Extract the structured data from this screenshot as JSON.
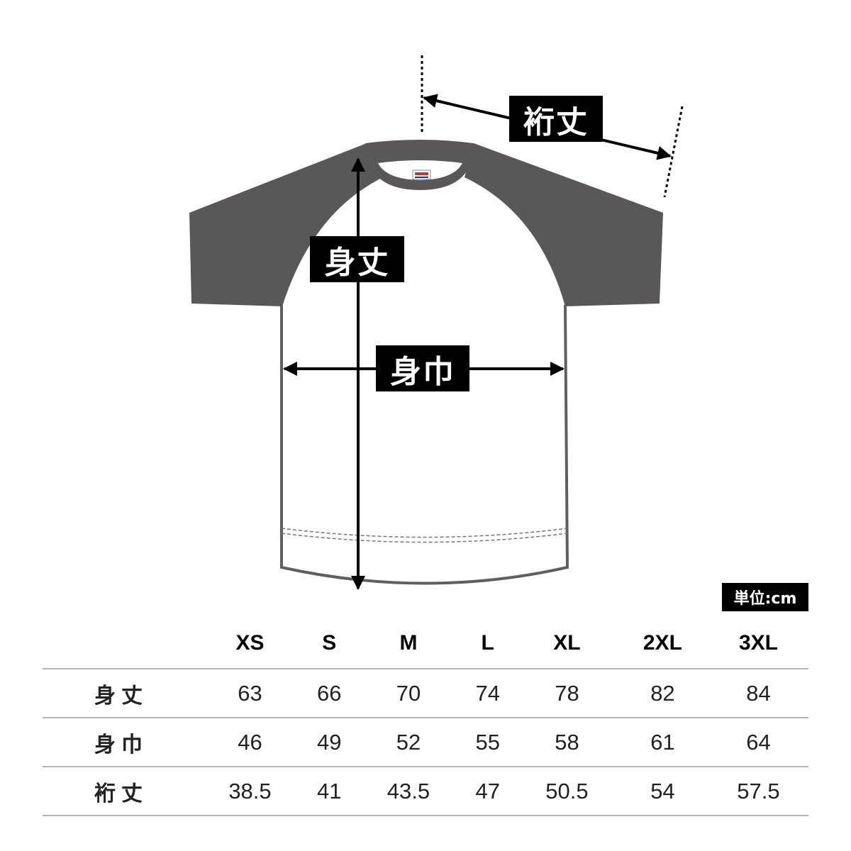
{
  "labels": {
    "body_length": "身丈",
    "body_width": "身巾",
    "sleeve_length": "裄丈"
  },
  "unit": "単位:cm",
  "colors": {
    "sleeve": "#595757",
    "outline": "#5f5f5f",
    "label_bg": "#000000"
  },
  "table": {
    "sizes": [
      "XS",
      "S",
      "M",
      "L",
      "XL",
      "2XL",
      "3XL"
    ],
    "rows": [
      {
        "label": "身丈",
        "values": [
          "63",
          "66",
          "70",
          "74",
          "78",
          "82",
          "84"
        ]
      },
      {
        "label": "身巾",
        "values": [
          "46",
          "49",
          "52",
          "55",
          "58",
          "61",
          "64"
        ]
      },
      {
        "label": "裄丈",
        "values": [
          "38.5",
          "41",
          "43.5",
          "47",
          "50.5",
          "54",
          "57.5"
        ]
      }
    ]
  }
}
